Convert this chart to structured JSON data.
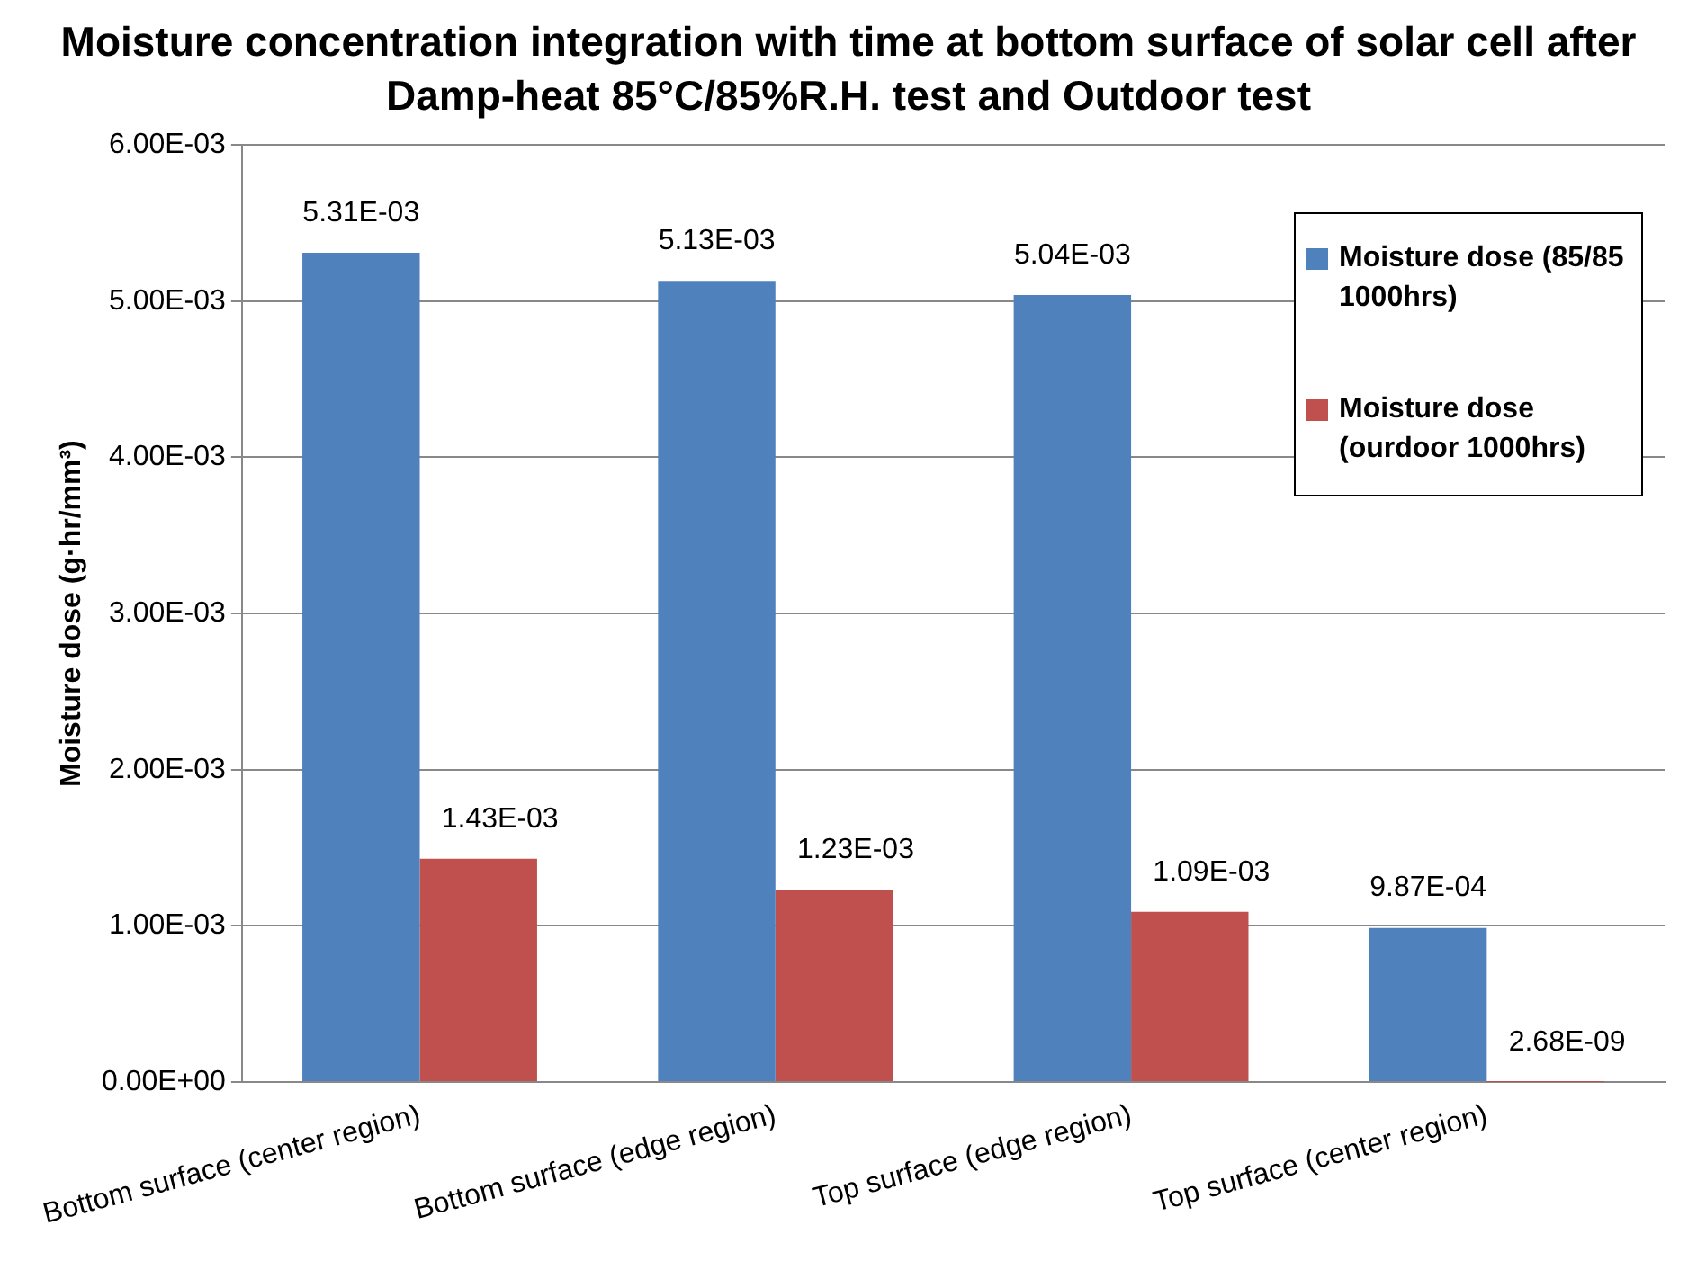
{
  "chart_data": {
    "type": "bar",
    "title": "Moisture concentration integration with time at bottom surface of solar cell after Damp-heat 85°C/85%R.H. test and Outdoor test",
    "ylabel": "Moisture dose (g·hr/mm³)",
    "categories": [
      "Bottom surface (center region)",
      "Bottom surface (edge region)",
      "Top surface (edge region)",
      "Top surface (center region)"
    ],
    "series": [
      {
        "name": "Moisture dose (85/85 1000hrs)",
        "color": "#4f81bd",
        "values": [
          0.00531,
          0.00513,
          0.00504,
          0.000987
        ],
        "value_labels": [
          "5.31E-03",
          "5.13E-03",
          "5.04E-03",
          "9.87E-04"
        ]
      },
      {
        "name": "Moisture dose (ourdoor 1000hrs)",
        "color": "#c0504d",
        "values": [
          0.00143,
          0.00123,
          0.00109,
          2.68e-09
        ],
        "value_labels": [
          "1.43E-03",
          "1.23E-03",
          "1.09E-03",
          "2.68E-09"
        ]
      }
    ],
    "ylim": [
      0,
      0.006
    ],
    "yticks": [
      {
        "value": 0,
        "label": "0.00E+00"
      },
      {
        "value": 0.001,
        "label": "1.00E-03"
      },
      {
        "value": 0.002,
        "label": "2.00E-03"
      },
      {
        "value": 0.003,
        "label": "3.00E-03"
      },
      {
        "value": 0.004,
        "label": "4.00E-03"
      },
      {
        "value": 0.005,
        "label": "5.00E-03"
      },
      {
        "value": 0.006,
        "label": "6.00E-03"
      }
    ],
    "grid": "y",
    "legend": "right"
  }
}
